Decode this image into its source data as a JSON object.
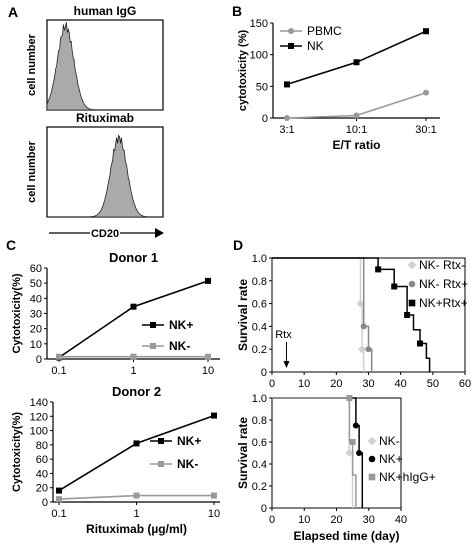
{
  "panels": {
    "A": "A",
    "B": "B",
    "C": "C",
    "D": "D"
  },
  "chart_data": [
    {
      "id": "A1",
      "type": "histogram",
      "title": "human IgG",
      "ylabel": "cell number",
      "xlabel": "",
      "peak_center": 0.16,
      "peak_width": 0.07,
      "peak_height": 0.93
    },
    {
      "id": "A2",
      "type": "histogram",
      "title": "Rituximab",
      "ylabel": "cell number",
      "xlabel": "CD20",
      "peak_center": 0.62,
      "peak_width": 0.07,
      "peak_height": 0.88
    },
    {
      "id": "B",
      "type": "line",
      "title": "",
      "xlabel": "E/T ratio",
      "ylabel": "cytotoxicity  (%)",
      "categories": [
        "3:1",
        "10:1",
        "30:1"
      ],
      "ylim": [
        0,
        150
      ],
      "yticks": [
        "0",
        "50",
        "100",
        "150"
      ],
      "legend_position": "top-left",
      "series": [
        {
          "name": "PBMC",
          "values": [
            0,
            4,
            40
          ],
          "color": "#999999",
          "marker": "circle"
        },
        {
          "name": "NK",
          "values": [
            53,
            88,
            137
          ],
          "color": "#000000",
          "marker": "square"
        }
      ]
    },
    {
      "id": "C1",
      "type": "line",
      "title": "Donor 1",
      "xlabel": "",
      "ylabel": "Cytotoxicity(%)",
      "categories": [
        "0.1",
        "1",
        "10"
      ],
      "ylim": [
        0,
        60
      ],
      "yticks": [
        "0",
        "10",
        "20",
        "30",
        "40",
        "50",
        "60"
      ],
      "legend_position": "right",
      "series": [
        {
          "name": "NK+",
          "values": [
            1,
            34.5,
            51.5
          ],
          "color": "#000000",
          "marker": "square"
        },
        {
          "name": "NK-",
          "values": [
            1.5,
            1.5,
            1.5
          ],
          "color": "#999999",
          "marker": "square"
        }
      ]
    },
    {
      "id": "C2",
      "type": "line",
      "title": "Donor 2",
      "xlabel": "Rituximab (µg/ml)",
      "ylabel": "Cytotoxicity(%)",
      "categories": [
        "0.1",
        "1",
        "10"
      ],
      "ylim": [
        0,
        140
      ],
      "yticks": [
        "0",
        "20",
        "40",
        "60",
        "80",
        "100",
        "120",
        "140"
      ],
      "legend_position": "right",
      "series": [
        {
          "name": "NK+",
          "values": [
            16,
            82,
            121
          ],
          "color": "#000000",
          "marker": "square"
        },
        {
          "name": "NK-",
          "values": [
            4,
            9,
            9
          ],
          "color": "#999999",
          "marker": "square"
        }
      ]
    },
    {
      "id": "D1",
      "type": "step",
      "title": "",
      "xlabel": "",
      "ylabel": "Survival rate",
      "xlim": [
        0,
        60
      ],
      "xticks": [
        "0",
        "10",
        "20",
        "30",
        "40",
        "50",
        "60"
      ],
      "ylim": [
        0,
        1
      ],
      "yticks": [
        "0",
        "0.2",
        "0.4",
        "0.6",
        "0.8",
        "1.0"
      ],
      "annotation": "Rtx",
      "annotation_x": 4.5,
      "legend_position": "top-right",
      "series": [
        {
          "name": "NK- Rtx-",
          "color": "#d0d0d0",
          "marker": "diamond",
          "steps": [
            [
              0,
              1
            ],
            [
              27.5,
              1
            ],
            [
              27.5,
              0.6
            ],
            [
              28,
              0.6
            ],
            [
              28,
              0.2
            ],
            [
              28.5,
              0.2
            ],
            [
              28.5,
              0
            ]
          ],
          "points": [
            [
              27.5,
              0.6
            ],
            [
              28,
              0.2
            ]
          ]
        },
        {
          "name": "NK- Rtx+",
          "color": "#888888",
          "marker": "circle",
          "steps": [
            [
              0,
              1
            ],
            [
              28.5,
              1
            ],
            [
              28.5,
              0.4
            ],
            [
              30,
              0.4
            ],
            [
              30,
              0.2
            ],
            [
              31,
              0.2
            ],
            [
              31,
              0
            ]
          ],
          "points": [
            [
              28.5,
              0.4
            ],
            [
              30,
              0.2
            ]
          ]
        },
        {
          "name": "NK+Rtx+",
          "color": "#000000",
          "marker": "square",
          "steps": [
            [
              0,
              1
            ],
            [
              33,
              1
            ],
            [
              33,
              0.9
            ],
            [
              38,
              0.9
            ],
            [
              38,
              0.75
            ],
            [
              42,
              0.75
            ],
            [
              42,
              0.5
            ],
            [
              44,
              0.5
            ],
            [
              44,
              0.37
            ],
            [
              46,
              0.37
            ],
            [
              46,
              0.25
            ],
            [
              48,
              0.25
            ],
            [
              48,
              0.12
            ],
            [
              49,
              0.12
            ],
            [
              49,
              0
            ]
          ],
          "points": [
            [
              33,
              0.9
            ],
            [
              38,
              0.75
            ],
            [
              42,
              0.5
            ],
            [
              46,
              0.25
            ]
          ]
        }
      ]
    },
    {
      "id": "D2",
      "type": "step",
      "title": "",
      "xlabel": "Elapsed time (day)",
      "ylabel": "Survival rate",
      "xlim": [
        0,
        40
      ],
      "xticks": [
        "0",
        "10",
        "20",
        "30",
        "40"
      ],
      "ylim": [
        0,
        1
      ],
      "yticks": [
        "0",
        "0.2",
        "0.4",
        "0.6",
        "0.8",
        "1.0"
      ],
      "legend_position": "top-right",
      "series": [
        {
          "name": "NK-",
          "color": "#d0d0d0",
          "marker": "diamond",
          "steps": [
            [
              0,
              1
            ],
            [
              24,
              1
            ],
            [
              24,
              0.5
            ],
            [
              25,
              0.5
            ],
            [
              25,
              0
            ]
          ],
          "points": [
            [
              24,
              0.5
            ]
          ]
        },
        {
          "name": "NK+",
          "color": "#000000",
          "marker": "circle",
          "steps": [
            [
              0,
              1
            ],
            [
              26,
              1
            ],
            [
              26,
              0.75
            ],
            [
              27,
              0.75
            ],
            [
              27,
              0.5
            ],
            [
              28,
              0.5
            ],
            [
              28,
              0
            ]
          ],
          "points": [
            [
              26,
              0.75
            ],
            [
              27,
              0.5
            ]
          ]
        },
        {
          "name": "NK+hIgG+",
          "color": "#999999",
          "marker": "square",
          "steps": [
            [
              0,
              1
            ],
            [
              24,
              1
            ],
            [
              24,
              0.6
            ],
            [
              25,
              0.6
            ],
            [
              25,
              0.3
            ],
            [
              26,
              0.3
            ],
            [
              26,
              0
            ]
          ],
          "points": [
            [
              24,
              1
            ],
            [
              25,
              0.6
            ]
          ]
        }
      ]
    }
  ]
}
